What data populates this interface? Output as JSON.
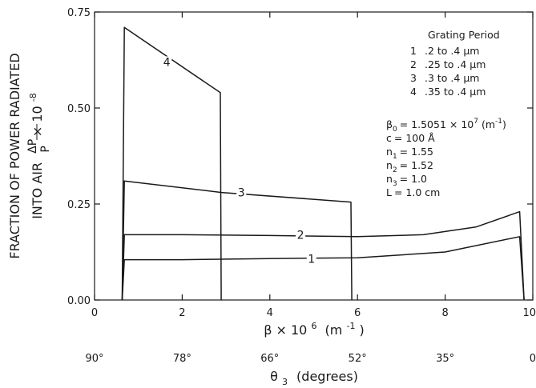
{
  "chart_data": {
    "type": "line",
    "ylabel_line1": "FRACTION OF POWER RADIATED",
    "ylabel_line2_prefix": "INTO AIR",
    "ylabel_fraction_num": "ΔP",
    "ylabel_fraction_den": "P",
    "ylabel_multiplier": "× 10",
    "ylabel_multiplier_exp": "-8",
    "xlabel": "β × 10",
    "xlabel_exp": "6",
    "xlabel_unit": "(m",
    "xlabel_unit_exp": "-1",
    "xlabel_unit_close": ")",
    "x2label": "θ",
    "x2label_sub": "3",
    "x2label_unit": "(degrees)",
    "xlim": [
      0,
      10
    ],
    "ylim": [
      0,
      0.75
    ],
    "x_ticks": [
      "0",
      "2",
      "4",
      "6",
      "8",
      "10"
    ],
    "y_ticks": [
      "0.00",
      "0.25",
      "0.50",
      "0.75"
    ],
    "x2_ticks": [
      {
        "x": 0,
        "label": "90°"
      },
      {
        "x": 2,
        "label": "78°"
      },
      {
        "x": 4,
        "label": "66°"
      },
      {
        "x": 6,
        "label": "52°"
      },
      {
        "x": 8,
        "label": "35°"
      },
      {
        "x": 10,
        "label": "0"
      }
    ],
    "legend_title": "Grating Period",
    "series": [
      {
        "name": "1",
        "label": ".2 to .4 μm",
        "points": [
          [
            0.63,
            0.0
          ],
          [
            0.68,
            0.105
          ],
          [
            2.0,
            0.105
          ],
          [
            4.0,
            0.108
          ],
          [
            6.0,
            0.11
          ],
          [
            8.0,
            0.125
          ],
          [
            9.7,
            0.165
          ],
          [
            9.8,
            0.0
          ]
        ]
      },
      {
        "name": "2",
        "label": ".25 to .4 μm",
        "points": [
          [
            0.63,
            0.0
          ],
          [
            0.68,
            0.17
          ],
          [
            2.0,
            0.17
          ],
          [
            4.0,
            0.168
          ],
          [
            6.0,
            0.165
          ],
          [
            7.5,
            0.17
          ],
          [
            8.7,
            0.19
          ],
          [
            9.7,
            0.23
          ],
          [
            9.8,
            0.0
          ]
        ]
      },
      {
        "name": "3",
        "label": ".3 to .4 μm",
        "points": [
          [
            0.63,
            0.0
          ],
          [
            0.68,
            0.31
          ],
          [
            2.9,
            0.28
          ],
          [
            5.85,
            0.255
          ],
          [
            5.87,
            0.0
          ]
        ]
      },
      {
        "name": "4",
        "label": ".35 to .4 μm",
        "points": [
          [
            0.63,
            0.0
          ],
          [
            0.68,
            0.71
          ],
          [
            2.87,
            0.54
          ],
          [
            2.89,
            0.0
          ]
        ]
      }
    ],
    "curve_labels": [
      {
        "series": "1",
        "text": "1",
        "x": 4.95,
        "y": 0.107
      },
      {
        "series": "2",
        "text": "2",
        "x": 4.7,
        "y": 0.17
      },
      {
        "series": "3",
        "text": "3",
        "x": 3.35,
        "y": 0.28
      },
      {
        "series": "4",
        "text": "4",
        "x": 1.65,
        "y": 0.62
      }
    ],
    "parameters": [
      {
        "sym": "β",
        "sub": "0",
        "val": "= 1.5051 × 10",
        "sup": "7",
        "tail": " (m",
        "sup2": "-1",
        "tail2": ")"
      },
      {
        "sym": "c",
        "sub": "",
        "val": "= 100 Å",
        "sup": "",
        "tail": "",
        "sup2": "",
        "tail2": ""
      },
      {
        "sym": "n",
        "sub": "1",
        "val": "= 1.55",
        "sup": "",
        "tail": "",
        "sup2": "",
        "tail2": ""
      },
      {
        "sym": "n",
        "sub": "2",
        "val": "= 1.52",
        "sup": "",
        "tail": "",
        "sup2": "",
        "tail2": ""
      },
      {
        "sym": "n",
        "sub": "3",
        "val": "= 1.0",
        "sup": "",
        "tail": "",
        "sup2": "",
        "tail2": ""
      },
      {
        "sym": "L",
        "sub": "",
        "val": "= 1.0 cm",
        "sup": "",
        "tail": "",
        "sup2": "",
        "tail2": ""
      }
    ],
    "grid": false,
    "legend_position": "top-right"
  }
}
